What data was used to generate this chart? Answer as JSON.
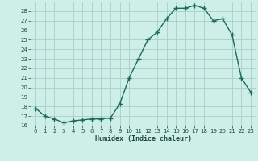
{
  "x": [
    0,
    1,
    2,
    3,
    4,
    5,
    6,
    7,
    8,
    9,
    10,
    11,
    12,
    13,
    14,
    15,
    16,
    17,
    18,
    19,
    20,
    21,
    22,
    23
  ],
  "y": [
    17.8,
    17.0,
    16.7,
    16.3,
    16.5,
    16.6,
    16.7,
    16.7,
    16.8,
    18.3,
    21.0,
    23.0,
    25.0,
    25.8,
    27.2,
    28.3,
    28.3,
    28.6,
    28.3,
    27.0,
    27.2,
    25.5,
    21.0,
    19.5
  ],
  "xlabel": "Humidex (Indice chaleur)",
  "xlim": [
    -0.5,
    23.5
  ],
  "ylim": [
    16,
    29
  ],
  "yticks": [
    16,
    17,
    18,
    19,
    20,
    21,
    22,
    23,
    24,
    25,
    26,
    27,
    28
  ],
  "xticks": [
    0,
    1,
    2,
    3,
    4,
    5,
    6,
    7,
    8,
    9,
    10,
    11,
    12,
    13,
    14,
    15,
    16,
    17,
    18,
    19,
    20,
    21,
    22,
    23
  ],
  "line_color": "#1a6b5a",
  "bg_color": "#ceeee8",
  "grid_color": "#aacdc8",
  "label_color": "#1a4a40"
}
